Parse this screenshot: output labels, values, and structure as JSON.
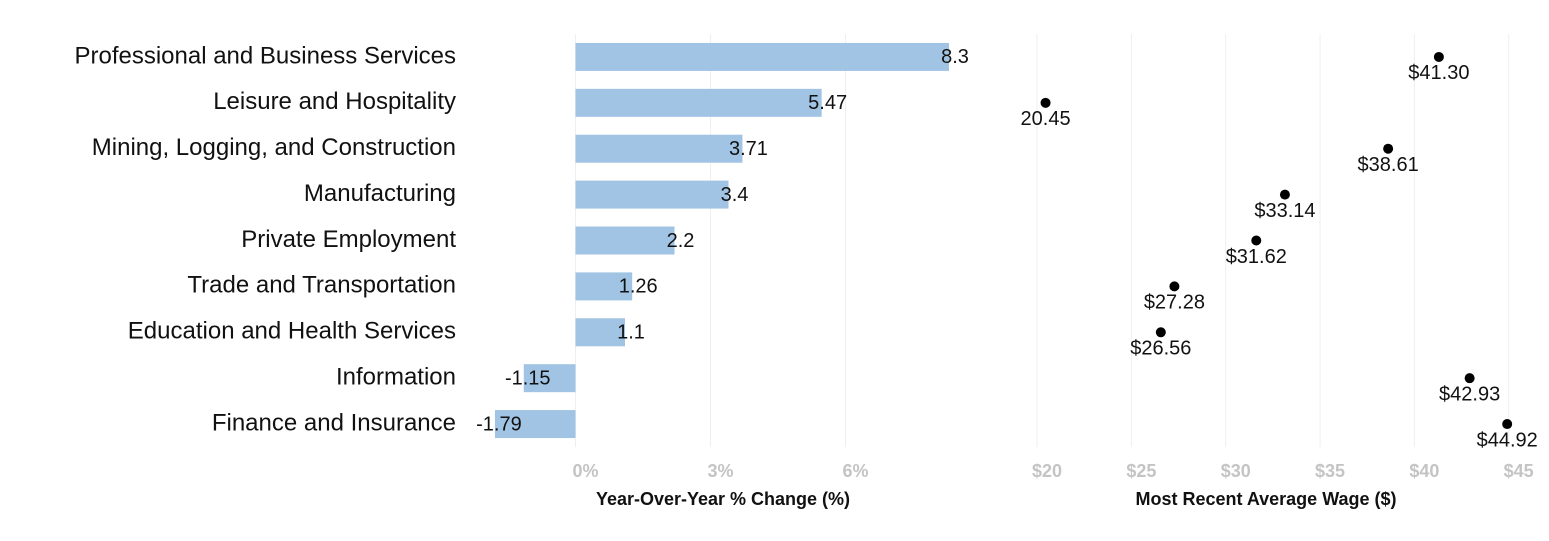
{
  "chart_data": [
    {
      "type": "bar",
      "orientation": "horizontal",
      "categories": [
        "Professional and Business Services",
        "Leisure and Hospitality",
        "Mining, Logging, and Construction",
        "Manufacturing",
        "Private Employment",
        "Trade and Transportation",
        "Education and Health Services",
        "Information",
        "Finance and Insurance"
      ],
      "values": [
        8.3,
        5.47,
        3.71,
        3.4,
        2.2,
        1.26,
        1.1,
        -1.15,
        -1.79
      ],
      "color": "#a1c4e4",
      "xlim": [
        -1.9,
        9.5
      ],
      "xticks": [
        {
          "value": 0,
          "label": "0%"
        },
        {
          "value": 3,
          "label": "3%"
        },
        {
          "value": 6,
          "label": "6%"
        }
      ],
      "xlabel": "Year-Over-Year % Change (%)",
      "grid": true
    },
    {
      "type": "scatter",
      "values": [
        41.3,
        20.45,
        38.61,
        33.14,
        31.62,
        27.28,
        26.56,
        42.93,
        44.92
      ],
      "value_labels": [
        "$41.30",
        "20.45",
        "$38.61",
        "$33.14",
        "$31.62",
        "$27.28",
        "$26.56",
        "$42.93",
        "$44.92"
      ],
      "color": "#000000",
      "xlim": [
        18.3,
        45.6
      ],
      "xticks": [
        {
          "value": 20,
          "label": "$20"
        },
        {
          "value": 25,
          "label": "$25"
        },
        {
          "value": 30,
          "label": "$30"
        },
        {
          "value": 35,
          "label": "$35"
        },
        {
          "value": 40,
          "label": "$40"
        },
        {
          "value": 45,
          "label": "$45"
        }
      ],
      "xlabel": "Most Recent Average Wage ($)",
      "grid": true
    }
  ]
}
